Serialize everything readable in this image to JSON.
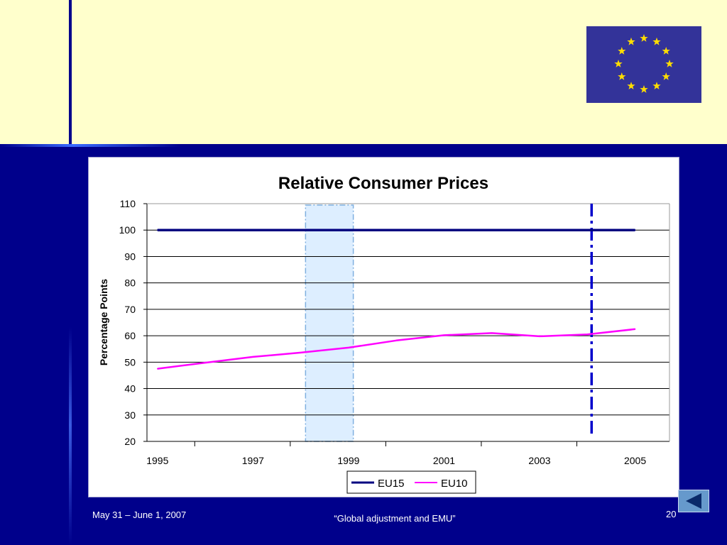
{
  "colors": {
    "slide_bg": "#00008B",
    "top_band": "#FFFFCC",
    "flag_blue": "#333399",
    "flag_star": "#FFDD00",
    "eu15_line": "#000080",
    "eu10_line": "#FF00FF",
    "shaded_band": "#DDEEFF",
    "marker_line": "#0000CC"
  },
  "flag": {
    "icon": "eu-flag-icon"
  },
  "chart_data": {
    "type": "line",
    "title": "Relative Consumer Prices",
    "xlabel": "",
    "ylabel": "Percentage Points",
    "x": [
      1995,
      1996,
      1997,
      1998,
      1999,
      2000,
      2001,
      2002,
      2003,
      2004,
      2005
    ],
    "xticks": [
      "1995",
      "1997",
      "1999",
      "2001",
      "2003",
      "2005"
    ],
    "ylim": [
      20,
      110
    ],
    "yticks": [
      "110",
      "100",
      "90",
      "80",
      "70",
      "60",
      "50",
      "40",
      "30",
      "20"
    ],
    "grid": true,
    "legend_position": "bottom",
    "series": [
      {
        "name": "EU15",
        "values": [
          100,
          100,
          100,
          100,
          100,
          100,
          100,
          100,
          100,
          100,
          100
        ]
      },
      {
        "name": "EU10",
        "values": [
          47.5,
          49.8,
          52,
          53.6,
          55.5,
          58.2,
          60.2,
          61,
          59.8,
          60.5,
          62.5
        ]
      }
    ],
    "shaded_region_x": [
      1998.1,
      1999.1
    ],
    "vertical_marker_x": 2004
  },
  "footer": {
    "date": "May 31 – June 1, 2007",
    "title": "“Global adjustment and EMU”",
    "page": "20"
  },
  "nav": {
    "icon": "back-arrow-icon"
  }
}
